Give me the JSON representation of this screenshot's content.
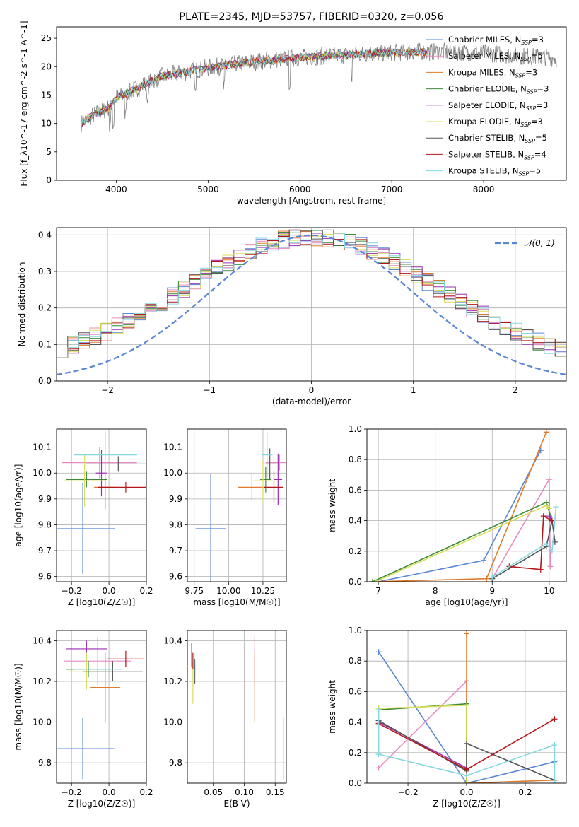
{
  "colors": {
    "Chabrier MILES": "#5b86d6",
    "Salpeter MILES": "#e58ac0",
    "Kroupa MILES": "#e07b2c",
    "Chabrier ELODIE": "#3e8a3a",
    "Salpeter ELODIE": "#9a2fb0",
    "Kroupa ELODIE": "#d6de56",
    "Chabrier STELIB": "#555555",
    "Salpeter STELIB": "#b3171b",
    "Kroupa STELIB": "#86d8e0",
    "normal": "#5b86d6",
    "observed": "#808080"
  },
  "chart_data": [
    {
      "type": "line",
      "id": "spectrum",
      "title": "PLATE=2345, MJD=53757, FIBERID=0320, z=0.056",
      "xlabel": "wavelength [Angstrom, rest frame]",
      "ylabel": "Flux [f_λ10^-17 erg cm^-2 s^-1 A^-1]",
      "xlim": [
        3350,
        8900
      ],
      "ylim": [
        0,
        27
      ],
      "xticks": [
        4000,
        5000,
        6000,
        7000,
        8000
      ],
      "yticks": [
        0,
        5,
        10,
        15,
        20,
        25
      ],
      "grid": false,
      "legend_position": "top-right",
      "series": [
        {
          "name": "Chabrier MILES",
          "nssp": 3
        },
        {
          "name": "Salpeter MILES",
          "nssp": 5
        },
        {
          "name": "Kroupa MILES",
          "nssp": 3
        },
        {
          "name": "Chabrier ELODIE",
          "nssp": 3
        },
        {
          "name": "Salpeter ELODIE",
          "nssp": 3
        },
        {
          "name": "Kroupa ELODIE",
          "nssp": 3
        },
        {
          "name": "Chabrier STELIB",
          "nssp": 5
        },
        {
          "name": "Salpeter STELIB",
          "nssp": 4
        },
        {
          "name": "Kroupa STELIB",
          "nssp": 5
        }
      ],
      "continuum": {
        "x": [
          3620,
          3750,
          3900,
          4000,
          4100,
          4300,
          4500,
          4800,
          5000,
          5300,
          5600,
          6000,
          6400,
          6800,
          7200,
          7500,
          7800,
          8100,
          8300,
          8800
        ],
        "y": [
          10,
          11.5,
          12.5,
          14.5,
          15.2,
          16.8,
          18.3,
          19.2,
          19.8,
          20.5,
          21,
          21.6,
          22,
          22.3,
          22.6,
          22.6,
          22.5,
          22.3,
          22,
          21.5
        ]
      },
      "model_extent": [
        3620,
        7400
      ]
    },
    {
      "type": "line",
      "id": "residuals",
      "xlabel": "(data-model)/error",
      "ylabel": "Normed distribution",
      "xlim": [
        -2.5,
        2.5
      ],
      "ylim": [
        0,
        0.42
      ],
      "xticks": [
        -2,
        -1,
        0,
        1,
        2
      ],
      "yticks": [
        0.0,
        0.1,
        0.2,
        0.3,
        0.4
      ],
      "grid": true,
      "legend": "N(0,1)",
      "legend_position": "top-right",
      "gaussian": {
        "mean": 0,
        "sigma": 1
      }
    },
    {
      "type": "scatter",
      "id": "age-vs-Z",
      "xlabel": "Z [log10(Z/Z☉)]",
      "ylabel": "age [log10(age/yr)]",
      "xlim": [
        -0.28,
        0.2
      ],
      "ylim": [
        9.58,
        10.17
      ],
      "xticks": [
        -0.2,
        0.0,
        0.2
      ],
      "yticks": [
        9.6,
        9.7,
        9.8,
        9.9,
        10.0,
        10.1
      ],
      "grid": true,
      "points": [
        {
          "model": "Chabrier MILES",
          "x": -0.14,
          "y": 9.785,
          "xerr": 0.17,
          "yerr": 0.175
        },
        {
          "model": "Salpeter MILES",
          "x": -0.05,
          "y": 10.04,
          "xerr": 0.2,
          "yerr": 0.06
        },
        {
          "model": "Kroupa MILES",
          "x": -0.02,
          "y": 9.945,
          "xerr": 0.06,
          "yerr": 0.085
        },
        {
          "model": "Chabrier ELODIE",
          "x": -0.12,
          "y": 9.975,
          "xerr": 0.11,
          "yerr": 0.03
        },
        {
          "model": "Salpeter ELODIE",
          "x": -0.04,
          "y": 10.0,
          "xerr": 0.03,
          "yerr": 0.09
        },
        {
          "model": "Kroupa ELODIE",
          "x": -0.13,
          "y": 9.97,
          "xerr": 0.11,
          "yerr": 0.1
        },
        {
          "model": "Chabrier STELIB",
          "x": 0.05,
          "y": 10.035,
          "xerr": 0.17,
          "yerr": 0.03
        },
        {
          "model": "Salpeter STELIB",
          "x": 0.09,
          "y": 9.945,
          "xerr": 0.15,
          "yerr": 0.02
        },
        {
          "model": "Kroupa STELIB",
          "x": -0.02,
          "y": 10.07,
          "xerr": 0.17,
          "yerr": 0.09
        }
      ]
    },
    {
      "type": "scatter",
      "id": "age-vs-mass",
      "xlabel": "mass [log10(M/M☉)]",
      "ylabel": "",
      "xlim": [
        9.7,
        10.42
      ],
      "ylim": [
        9.58,
        10.17
      ],
      "xticks": [
        9.75,
        10.0,
        10.25
      ],
      "yticks": [
        9.6,
        9.7,
        9.8,
        9.9,
        10.0,
        10.1
      ],
      "grid": true,
      "points": [
        {
          "model": "Chabrier MILES",
          "x": 9.87,
          "y": 9.785,
          "xerr": 0.11,
          "yerr": 0.21
        },
        {
          "model": "Salpeter MILES",
          "x": 10.37,
          "y": 10.04,
          "xerr": 0.1,
          "yerr": 0.03
        },
        {
          "model": "Kroupa MILES",
          "x": 10.17,
          "y": 9.945,
          "xerr": 0.1,
          "yerr": 0.05
        },
        {
          "model": "Chabrier ELODIE",
          "x": 10.27,
          "y": 9.975,
          "xerr": 0.04,
          "yerr": 0.05
        },
        {
          "model": "Salpeter ELODIE",
          "x": 10.36,
          "y": 9.975,
          "xerr": 0.03,
          "yerr": 0.1
        },
        {
          "model": "Kroupa ELODIE",
          "x": 10.25,
          "y": 9.97,
          "xerr": 0.07,
          "yerr": 0.08
        },
        {
          "model": "Chabrier STELIB",
          "x": 10.3,
          "y": 10.035,
          "xerr": 0.05,
          "yerr": 0.06
        },
        {
          "model": "Salpeter STELIB",
          "x": 10.33,
          "y": 9.945,
          "xerr": 0.07,
          "yerr": 0.06
        },
        {
          "model": "Kroupa STELIB",
          "x": 10.28,
          "y": 10.07,
          "xerr": 0.04,
          "yerr": 0.09
        }
      ]
    },
    {
      "type": "line",
      "id": "weight-vs-age",
      "xlabel": "age [log10(age/yr)]",
      "ylabel": "mass weight",
      "xlim": [
        6.8,
        10.3
      ],
      "ylim": [
        0,
        1.0
      ],
      "xticks": [
        7,
        8,
        9,
        10
      ],
      "yticks": [
        0.0,
        0.2,
        0.4,
        0.6,
        0.8,
        1.0
      ],
      "grid": true,
      "series": [
        {
          "model": "Chabrier MILES",
          "x": [
            7.0,
            8.85,
            9.85
          ],
          "y": [
            0.0,
            0.14,
            0.86
          ]
        },
        {
          "model": "Salpeter MILES",
          "x": [
            9.0,
            10.0,
            10.02
          ],
          "y": [
            0.02,
            0.67,
            0.1
          ]
        },
        {
          "model": "Kroupa MILES",
          "x": [
            6.9,
            8.9,
            9.95
          ],
          "y": [
            0.0,
            0.02,
            0.98
          ]
        },
        {
          "model": "Chabrier ELODIE",
          "x": [
            6.9,
            9.95,
            10.05
          ],
          "y": [
            0.0,
            0.52,
            0.4
          ]
        },
        {
          "model": "Salpeter ELODIE",
          "x": [
            10.0,
            10.05
          ],
          "y": [
            0.43,
            0.4
          ]
        },
        {
          "model": "Kroupa ELODIE",
          "x": [
            6.95,
            9.95,
            10.0
          ],
          "y": [
            0.0,
            0.5,
            0.48
          ]
        },
        {
          "model": "Chabrier STELIB",
          "x": [
            9.0,
            9.95,
            10.05,
            10.1
          ],
          "y": [
            0.02,
            0.23,
            0.4,
            0.26
          ]
        },
        {
          "model": "Salpeter STELIB",
          "x": [
            9.3,
            9.85,
            9.9,
            10.05
          ],
          "y": [
            0.1,
            0.08,
            0.43,
            0.4
          ]
        },
        {
          "model": "Kroupa STELIB",
          "x": [
            9.0,
            9.95,
            10.05,
            10.12
          ],
          "y": [
            0.03,
            0.25,
            0.2,
            0.49
          ]
        }
      ]
    },
    {
      "type": "scatter",
      "id": "mass-vs-Z",
      "xlabel": "Z [log10(Z/Z☉)]",
      "ylabel": "mass [log10(M/M☉)]",
      "xlim": [
        -0.28,
        0.2
      ],
      "ylim": [
        9.7,
        10.45
      ],
      "xticks": [
        -0.2,
        0.0,
        0.2
      ],
      "yticks": [
        9.8,
        10.0,
        10.2,
        10.4
      ],
      "grid": true,
      "points": [
        {
          "model": "Chabrier MILES",
          "x": -0.14,
          "y": 9.87,
          "xerr": 0.17,
          "yerr": 0.15
        },
        {
          "model": "Salpeter MILES",
          "x": -0.06,
          "y": 10.3,
          "xerr": 0.18,
          "yerr": 0.12
        },
        {
          "model": "Kroupa MILES",
          "x": -0.02,
          "y": 10.17,
          "xerr": 0.08,
          "yerr": 0.17
        },
        {
          "model": "Chabrier ELODIE",
          "x": -0.11,
          "y": 10.26,
          "xerr": 0.12,
          "yerr": 0.04
        },
        {
          "model": "Salpeter ELODIE",
          "x": -0.12,
          "y": 10.36,
          "xerr": 0.11,
          "yerr": 0.04
        },
        {
          "model": "Kroupa ELODIE",
          "x": -0.12,
          "y": 10.25,
          "xerr": 0.1,
          "yerr": 0.09
        },
        {
          "model": "Chabrier STELIB",
          "x": 0.02,
          "y": 10.25,
          "xerr": 0.16,
          "yerr": 0.05
        },
        {
          "model": "Salpeter STELIB",
          "x": 0.09,
          "y": 10.31,
          "xerr": 0.1,
          "yerr": 0.04
        },
        {
          "model": "Kroupa STELIB",
          "x": -0.06,
          "y": 10.26,
          "xerr": 0.13,
          "yerr": 0.06
        }
      ]
    },
    {
      "type": "scatter",
      "id": "mass-vs-EBV",
      "xlabel": "E(B-V)",
      "ylabel": "",
      "xlim": [
        0.008,
        0.168
      ],
      "ylim": [
        9.7,
        10.45
      ],
      "xticks": [
        0.05,
        0.1,
        0.15
      ],
      "yticks": [
        9.8,
        10.0,
        10.2,
        10.4
      ],
      "grid": true,
      "points": [
        {
          "model": "Chabrier MILES",
          "x": 0.163,
          "y": 9.87,
          "xerr": 0.0,
          "yerr": 0.15
        },
        {
          "model": "Salpeter MILES",
          "x": 0.117,
          "y": 10.3,
          "xerr": 0.0,
          "yerr": 0.12
        },
        {
          "model": "Kroupa MILES",
          "x": 0.117,
          "y": 10.17,
          "xerr": 0.0,
          "yerr": 0.17
        },
        {
          "model": "Chabrier ELODIE",
          "x": 0.02,
          "y": 10.26,
          "xerr": 0.0,
          "yerr": 0.04
        },
        {
          "model": "Salpeter ELODIE",
          "x": 0.015,
          "y": 10.33,
          "xerr": 0.0,
          "yerr": 0.06
        },
        {
          "model": "Kroupa ELODIE",
          "x": 0.017,
          "y": 10.19,
          "xerr": 0.0,
          "yerr": 0.1
        },
        {
          "model": "Chabrier STELIB",
          "x": 0.02,
          "y": 10.25,
          "xerr": 0.0,
          "yerr": 0.06
        },
        {
          "model": "Salpeter STELIB",
          "x": 0.017,
          "y": 10.3,
          "xerr": 0.0,
          "yerr": 0.04
        },
        {
          "model": "Kroupa STELIB",
          "x": 0.019,
          "y": 10.27,
          "xerr": 0.0,
          "yerr": 0.07
        }
      ]
    },
    {
      "type": "line",
      "id": "weight-vs-Z",
      "xlabel": "Z [log10(Z/Z☉)]",
      "ylabel": "mass weight",
      "xlim": [
        -0.34,
        0.34
      ],
      "ylim": [
        0,
        1.0
      ],
      "xticks": [
        -0.2,
        0.0,
        0.2
      ],
      "yticks": [
        0.0,
        0.2,
        0.4,
        0.6,
        0.8,
        1.0
      ],
      "grid": true,
      "series": [
        {
          "model": "Chabrier MILES",
          "x": [
            -0.3,
            0.0,
            0.3
          ],
          "y": [
            0.86,
            0.0,
            0.14
          ]
        },
        {
          "model": "Salpeter MILES",
          "x": [
            -0.3,
            0.0,
            0.0
          ],
          "y": [
            0.1,
            0.67,
            0.02
          ]
        },
        {
          "model": "Kroupa MILES",
          "x": [
            0.0,
            0.0,
            0.3
          ],
          "y": [
            0.98,
            0.0,
            0.02
          ]
        },
        {
          "model": "Chabrier ELODIE",
          "x": [
            -0.3,
            0.0,
            0.0
          ],
          "y": [
            0.48,
            0.52,
            0.0
          ]
        },
        {
          "model": "Salpeter ELODIE",
          "x": [
            -0.3,
            0.0
          ],
          "y": [
            0.4,
            0.1
          ]
        },
        {
          "model": "Kroupa ELODIE",
          "x": [
            -0.3,
            0.0,
            0.0
          ],
          "y": [
            0.49,
            0.51,
            0.0
          ]
        },
        {
          "model": "Chabrier STELIB",
          "x": [
            -0.3,
            0.0,
            0.0,
            0.3
          ],
          "y": [
            0.41,
            0.08,
            0.26,
            0.02
          ]
        },
        {
          "model": "Salpeter STELIB",
          "x": [
            -0.3,
            0.0,
            0.3
          ],
          "y": [
            0.39,
            0.09,
            0.42
          ]
        },
        {
          "model": "Kroupa STELIB",
          "x": [
            -0.3,
            -0.3,
            0.0,
            0.3,
            0.3
          ],
          "y": [
            0.48,
            0.19,
            0.05,
            0.25,
            0.0
          ]
        }
      ]
    }
  ]
}
